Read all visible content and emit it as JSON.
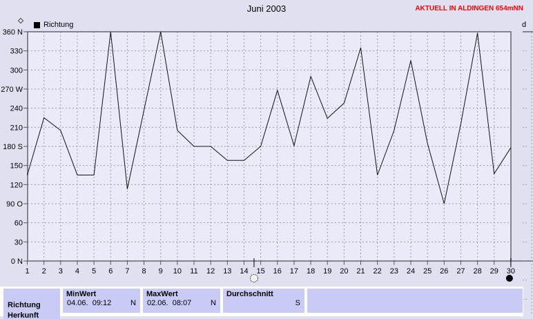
{
  "header": {
    "title": "Juni 2003",
    "status": "AKTUELL IN ALDINGEN 654mNN",
    "partial_right_label": "d"
  },
  "legend": {
    "label": "Richtung"
  },
  "chart_data": {
    "type": "line",
    "title": "Juni 2003",
    "series": [
      {
        "name": "Richtung",
        "values": [
          135,
          225,
          205,
          135,
          135,
          360,
          113,
          237,
          360,
          205,
          180,
          180,
          158,
          158,
          180,
          268,
          181,
          290,
          224,
          248,
          335,
          135,
          205,
          315,
          185,
          90,
          215,
          358,
          137,
          178
        ]
      }
    ],
    "x": [
      1,
      2,
      3,
      4,
      5,
      6,
      7,
      8,
      9,
      10,
      11,
      12,
      13,
      14,
      15,
      16,
      17,
      18,
      19,
      20,
      21,
      22,
      23,
      24,
      25,
      26,
      27,
      28,
      29,
      30
    ],
    "xlabel": "",
    "ylabel": "",
    "ylim": [
      0,
      360
    ],
    "ytick_step": 30,
    "ytick_labels": [
      "0 N",
      "30",
      "60",
      "90 O",
      "120",
      "150",
      "180 S",
      "210",
      "240",
      "270 W",
      "300",
      "330",
      "360 N"
    ],
    "grid": true,
    "legend_position": "top-left",
    "line_color": "#111111",
    "marker_open_day": 14.6,
    "marker_filled_day": 30
  },
  "colors": {
    "page_bg": "#dfe1f0",
    "plot_bg": "#eaebf8",
    "grid": "#9a9aa8",
    "border": "#84848c",
    "cell_bg": "#c9caf5",
    "accent_red": "#ff0000"
  },
  "table": {
    "param": {
      "label": "Richtung",
      "label2": "Herkunft"
    },
    "columns": [
      {
        "header": "MinWert",
        "value": "04.06.  09:12",
        "unit": "N"
      },
      {
        "header": "MaxWert",
        "value": "02.06.  08:07",
        "unit": "N"
      },
      {
        "header": "Durchschnitt",
        "value": "",
        "unit": "S"
      }
    ]
  }
}
